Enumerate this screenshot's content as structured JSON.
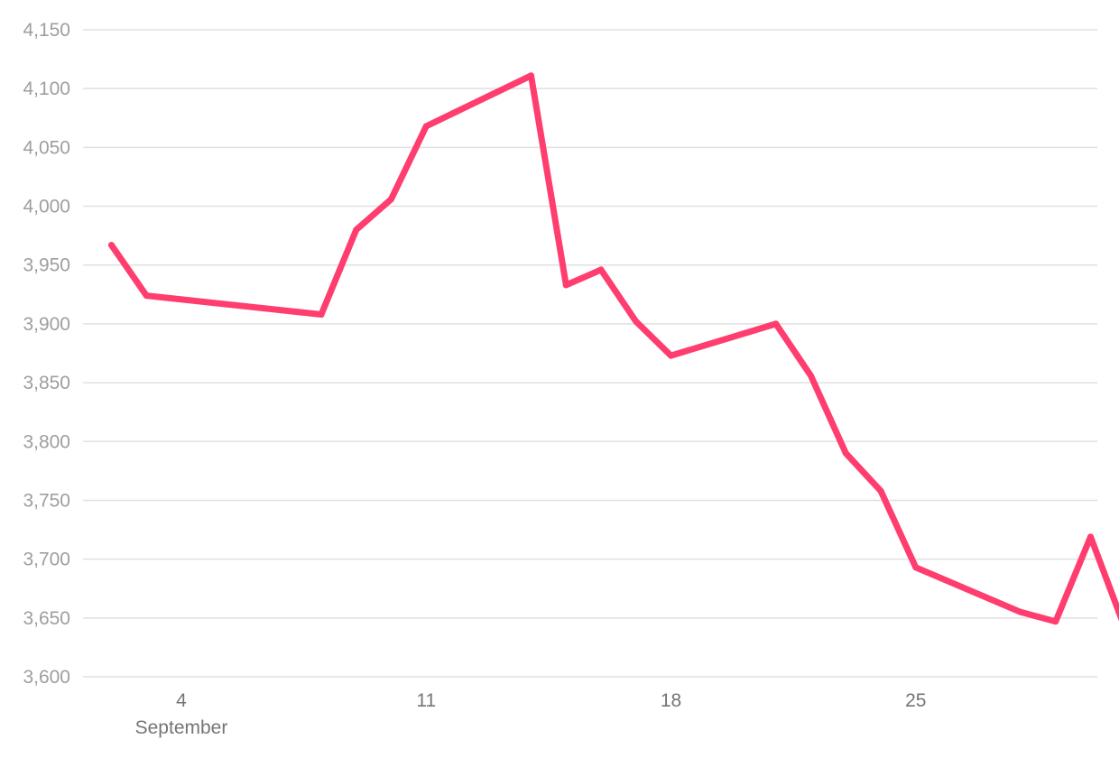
{
  "colors": {
    "series": "#ff3d6e",
    "grid": "#e0e0e0",
    "y_tick_text": "#9e9e9e",
    "x_tick_text": "#757575"
  },
  "chart_data": {
    "type": "line",
    "title": "",
    "xlabel": "",
    "ylabel": "",
    "grid": true,
    "legend": "none",
    "x_axis": {
      "range": [
        "2023-09-01",
        "2023-09-30"
      ],
      "ticks": [
        {
          "date": "2023-09-04",
          "label": "4",
          "sublabel": "September"
        },
        {
          "date": "2023-09-11",
          "label": "11",
          "sublabel": ""
        },
        {
          "date": "2023-09-18",
          "label": "18",
          "sublabel": ""
        },
        {
          "date": "2023-09-25",
          "label": "25",
          "sublabel": ""
        }
      ]
    },
    "y_axis": {
      "range": [
        3600,
        4150
      ],
      "ticks": [
        {
          "value": 3600,
          "label": "3,600"
        },
        {
          "value": 3650,
          "label": "3,650"
        },
        {
          "value": 3700,
          "label": "3,700"
        },
        {
          "value": 3750,
          "label": "3,750"
        },
        {
          "value": 3800,
          "label": "3,800"
        },
        {
          "value": 3850,
          "label": "3,850"
        },
        {
          "value": 3900,
          "label": "3,900"
        },
        {
          "value": 3950,
          "label": "3,950"
        },
        {
          "value": 4000,
          "label": "4,000"
        },
        {
          "value": 4050,
          "label": "4,050"
        },
        {
          "value": 4100,
          "label": "4,100"
        },
        {
          "value": 4150,
          "label": "4,150"
        }
      ]
    },
    "series": [
      {
        "points": [
          {
            "x": "2023-09-02",
            "y": 3967
          },
          {
            "x": "2023-09-03",
            "y": 3924
          },
          {
            "x": "2023-09-08",
            "y": 3908
          },
          {
            "x": "2023-09-09",
            "y": 3980
          },
          {
            "x": "2023-09-10",
            "y": 4006
          },
          {
            "x": "2023-09-11",
            "y": 4068
          },
          {
            "x": "2023-09-14",
            "y": 4111
          },
          {
            "x": "2023-09-15",
            "y": 3933
          },
          {
            "x": "2023-09-16",
            "y": 3946
          },
          {
            "x": "2023-09-17",
            "y": 3902
          },
          {
            "x": "2023-09-18",
            "y": 3873
          },
          {
            "x": "2023-09-21",
            "y": 3900
          },
          {
            "x": "2023-09-22",
            "y": 3856
          },
          {
            "x": "2023-09-23",
            "y": 3790
          },
          {
            "x": "2023-09-24",
            "y": 3758
          },
          {
            "x": "2023-09-25",
            "y": 3693
          },
          {
            "x": "2023-09-28",
            "y": 3655
          },
          {
            "x": "2023-09-29",
            "y": 3647
          },
          {
            "x": "2023-09-30",
            "y": 3719
          },
          {
            "x": "2023-10-01",
            "y": 3640
          }
        ]
      }
    ]
  }
}
